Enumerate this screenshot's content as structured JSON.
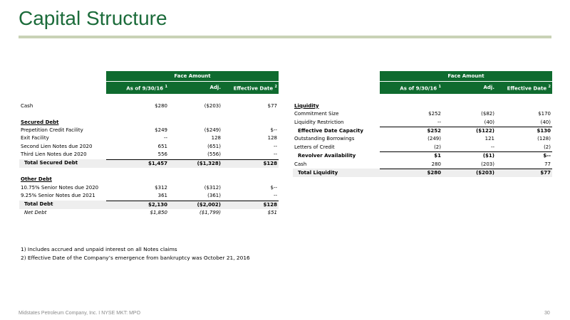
{
  "title": "Capital Structure",
  "left_table": {
    "header_band": "Face Amount",
    "col_headers": [
      "As of 9/30/16",
      "Adj.",
      "Effective Date"
    ],
    "col_sup": [
      "1",
      "",
      "2"
    ],
    "rows": [
      {
        "label": "Cash",
        "v1": "$280",
        "v2": "($203)",
        "v3": "$77"
      },
      {
        "label": "Secured Debt"
      },
      {
        "label": "Prepetition Credit Facility",
        "v1": "$249",
        "v2": "($249)",
        "v3": "$--"
      },
      {
        "label": "Exit Facility",
        "v1": "--",
        "v2": "128",
        "v3": "128"
      },
      {
        "label": "Second Lien Notes due 2020",
        "v1": "651",
        "v2": "(651)",
        "v3": "--"
      },
      {
        "label": "Third Lien Notes due 2020",
        "v1": "556",
        "v2": "(556)",
        "v3": "--"
      },
      {
        "label": "Total Secured Debt",
        "v1": "$1,457",
        "v2": "($1,328)",
        "v3": "$128"
      },
      {
        "label": "Other Debt"
      },
      {
        "label": "10.75% Senior Notes due 2020",
        "v1": "$312",
        "v2": "($312)",
        "v3": "$--"
      },
      {
        "label": "9.25% Senior Notes due 2021",
        "v1": "361",
        "v2": "(361)",
        "v3": "--"
      },
      {
        "label": "Total Debt",
        "v1": "$2,130",
        "v2": "($2,002)",
        "v3": "$128"
      },
      {
        "label": "Net Debt",
        "v1": "$1,850",
        "v2": "($1,799)",
        "v3": "$51"
      }
    ]
  },
  "right_table": {
    "header_band": "Face Amount",
    "col_headers": [
      "As of 9/30/16",
      "Adj.",
      "Effective Date"
    ],
    "col_sup": [
      "1",
      "",
      "2"
    ],
    "rows": [
      {
        "label": "Liquidity"
      },
      {
        "label": "Commitment Size",
        "v1": "$252",
        "v2": "($82)",
        "v3": "$170"
      },
      {
        "label": "Liquidity Restriction",
        "v1": "--",
        "v2": "(40)",
        "v3": "(40)"
      },
      {
        "label": "Effective Date Capacity",
        "v1": "$252",
        "v2": "($122)",
        "v3": "$130"
      },
      {
        "label": "Outstanding Borrowings",
        "v1": "(249)",
        "v2": "121",
        "v3": "(128)"
      },
      {
        "label": "Letters of Credit",
        "v1": "(2)",
        "v2": "--",
        "v3": "(2)"
      },
      {
        "label": "Revolver Availability",
        "v1": "$1",
        "v2": "($1)",
        "v3": "$--"
      },
      {
        "label": "Cash",
        "v1": "280",
        "v2": "(203)",
        "v3": "77"
      },
      {
        "label": "Total Liquidity",
        "v1": "$280",
        "v2": "($203)",
        "v3": "$77"
      }
    ]
  },
  "notes": [
    "1) Includes accrued and unpaid interest on all Notes claims",
    "2) Effective Date of the Company’s emergence from bankruptcy was October 21, 2016"
  ],
  "footer": "Midstates Petroleum Company, Inc. I NYSE MKT: MPO",
  "page_number": "30"
}
